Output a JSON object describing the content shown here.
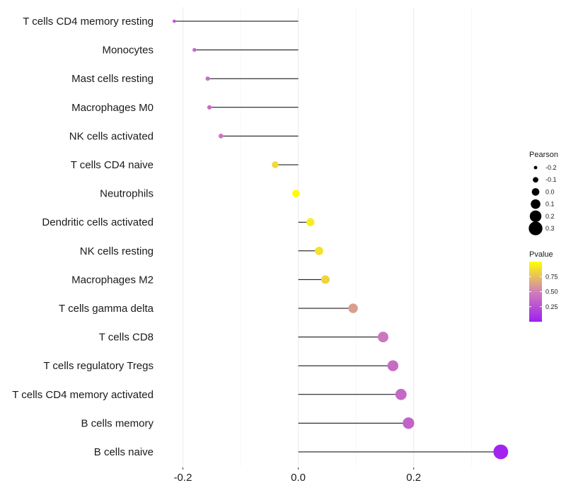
{
  "chart_data": {
    "type": "lollipop",
    "title": "",
    "xlabel": "",
    "ylabel": "",
    "xlim": [
      -0.32,
      0.365
    ],
    "x_ticks": [
      -0.2,
      0.0,
      0.2
    ],
    "x_tick_labels": [
      "-0.2",
      "0.0",
      "0.2"
    ],
    "minor_gridlines": [
      -0.3,
      -0.1,
      0.1,
      0.3
    ],
    "categories": [
      "T cells CD4 memory resting",
      "Monocytes",
      "Mast cells resting",
      "Macrophages M0",
      "NK cells activated",
      "T cells CD4 naive",
      "Neutrophils",
      "Dendritic cells activated",
      "NK cells resting",
      "Macrophages M2",
      "T cells gamma delta",
      "T cells CD8",
      "T cells regulatory  Tregs ",
      "T cells CD4 memory activated",
      "B cells memory",
      "B cells naive"
    ],
    "pearson": [
      -0.215,
      -0.18,
      -0.157,
      -0.154,
      -0.134,
      -0.04,
      -0.004,
      0.021,
      0.036,
      0.047,
      0.095,
      0.147,
      0.164,
      0.178,
      0.191,
      0.351
    ],
    "pvalue": [
      0.25,
      0.38,
      0.42,
      0.4,
      0.45,
      0.85,
      0.99,
      0.93,
      0.88,
      0.83,
      0.62,
      0.45,
      0.4,
      0.38,
      0.35,
      0.02
    ],
    "legend_size": {
      "title": "Pearson",
      "values": [
        -0.2,
        -0.1,
        0.0,
        0.1,
        0.2,
        0.3
      ],
      "labels": [
        "-0.2",
        "-0.1",
        "0.0",
        "0.1",
        "0.2",
        "0.3"
      ]
    },
    "legend_color": {
      "title": "Pvalue",
      "range": [
        0.0,
        1.0
      ],
      "ticks": [
        0.25,
        0.5,
        0.75
      ],
      "tick_labels": [
        "0.25",
        "0.50",
        "0.75"
      ],
      "low_color": "#a020f0",
      "mid_color": "#d080b8",
      "high_color": "#ffff00"
    },
    "legend_position": "right",
    "grid": true
  }
}
